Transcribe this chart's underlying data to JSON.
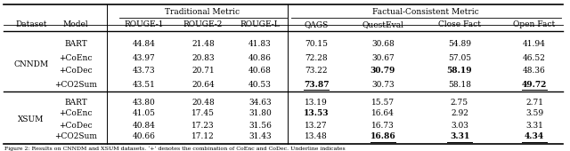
{
  "col_names": [
    "Dataset",
    "Model",
    "ROUGE-1",
    "ROUGE-2",
    "ROUGE-L",
    "QAGS",
    "QuestEval",
    "Close Fact",
    "Open Fact"
  ],
  "trad_label": "Traditional Metric",
  "fact_label": "Factual-Consistent Metric",
  "models": [
    "BART",
    "+CoEnc",
    "+CoDec",
    "+CO2Sum"
  ],
  "cnndm_data": [
    [
      "44.84",
      "21.48",
      "41.83",
      "70.15",
      "30.68",
      "54.89",
      "41.94"
    ],
    [
      "43.97",
      "20.83",
      "40.86",
      "72.28",
      "30.67",
      "57.05",
      "46.52"
    ],
    [
      "43.73",
      "20.71",
      "40.68",
      "73.22",
      "30.79",
      "58.19",
      "48.36"
    ],
    [
      "43.51",
      "20.64",
      "40.53",
      "73.87",
      "30.73",
      "58.18",
      "49.72"
    ]
  ],
  "xsum_data": [
    [
      "43.80",
      "20.48",
      "34.63",
      "13.19",
      "15.57",
      "2.75",
      "2.71"
    ],
    [
      "41.05",
      "17.45",
      "31.80",
      "13.53",
      "16.64",
      "2.92",
      "3.59"
    ],
    [
      "40.84",
      "17.23",
      "31.56",
      "13.27",
      "16.73",
      "3.03",
      "3.31"
    ],
    [
      "40.66",
      "17.12",
      "31.43",
      "13.48",
      "16.86",
      "3.31",
      "4.34"
    ]
  ],
  "cnndm_bold": [
    [
      false,
      false,
      false,
      false,
      false,
      false,
      false
    ],
    [
      false,
      false,
      false,
      false,
      false,
      false,
      false
    ],
    [
      false,
      false,
      false,
      false,
      true,
      true,
      false
    ],
    [
      false,
      false,
      false,
      true,
      false,
      false,
      true
    ]
  ],
  "cnndm_underline": [
    [
      false,
      false,
      false,
      false,
      false,
      false,
      false
    ],
    [
      false,
      false,
      false,
      false,
      false,
      false,
      false
    ],
    [
      false,
      false,
      false,
      false,
      false,
      false,
      false
    ],
    [
      false,
      false,
      false,
      true,
      false,
      false,
      true
    ]
  ],
  "xsum_bold": [
    [
      false,
      false,
      false,
      false,
      false,
      false,
      false
    ],
    [
      false,
      false,
      false,
      true,
      false,
      false,
      false
    ],
    [
      false,
      false,
      false,
      false,
      false,
      false,
      false
    ],
    [
      false,
      false,
      false,
      false,
      true,
      true,
      true
    ]
  ],
  "xsum_underline": [
    [
      false,
      false,
      false,
      false,
      false,
      false,
      false
    ],
    [
      false,
      false,
      false,
      false,
      false,
      false,
      false
    ],
    [
      false,
      false,
      false,
      false,
      false,
      false,
      false
    ],
    [
      false,
      false,
      false,
      false,
      true,
      true,
      true
    ]
  ],
  "caption": "Figure 2: Results on CNNDM and XSUM datasets. ‘+’ denotes the combination of CoEnc and CoDec. Underline indicates"
}
